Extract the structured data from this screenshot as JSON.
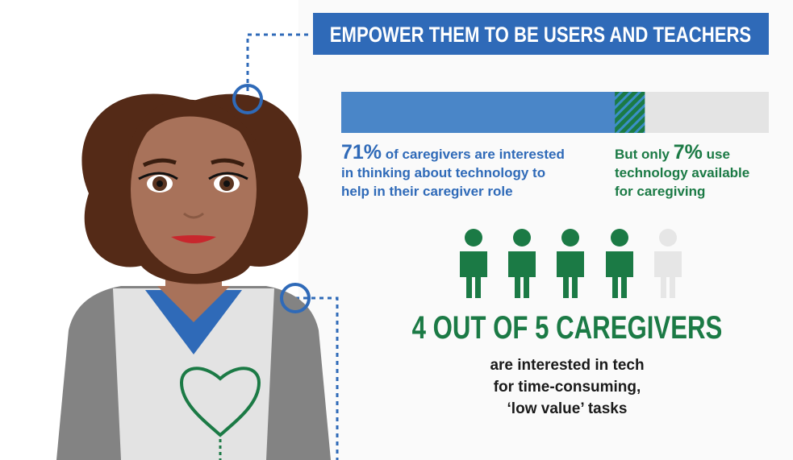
{
  "header": {
    "title": "EMPOWER THEM TO BE USERS AND TEACHERS"
  },
  "interested": {
    "value": 71,
    "label": "71%",
    "lines": [
      "of caregivers are interested",
      "in thinking about technology to",
      "help in their caregiver role"
    ]
  },
  "use": {
    "prefix": "But only",
    "value": 7,
    "label": "7%",
    "lines": [
      "use",
      "technology available",
      "for caregiving"
    ]
  },
  "people": {
    "headline": "4 OUT OF 5 CAREGIVERS",
    "lines": [
      "are interested in tech",
      "for time-consuming,",
      "‘low value’ tasks"
    ]
  }
}
